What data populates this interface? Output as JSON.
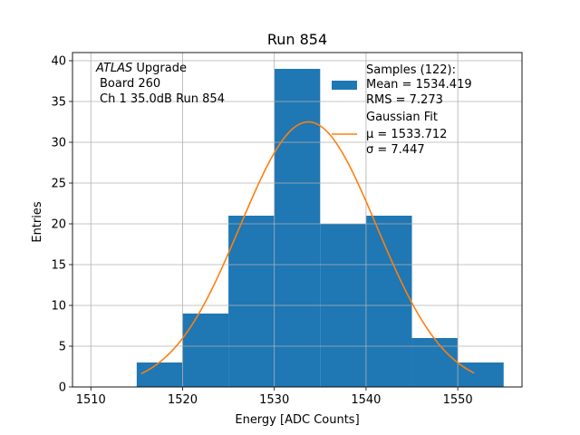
{
  "chart_data": {
    "type": "bar",
    "title": "Run 854",
    "xlabel": "Energy [ADC Counts]",
    "ylabel": "Entries",
    "xlim": [
      1508,
      1557
    ],
    "ylim": [
      0,
      41
    ],
    "grid": true,
    "xticks": [
      "1510",
      "1520",
      "1530",
      "1540",
      "1550"
    ],
    "yticks": [
      "0",
      "5",
      "10",
      "15",
      "20",
      "25",
      "30",
      "35",
      "40"
    ],
    "histogram": {
      "bin_edges": [
        1515,
        1520,
        1525,
        1530,
        1535,
        1540,
        1545,
        1550,
        1555
      ],
      "counts": [
        3,
        9,
        21,
        39,
        20,
        21,
        6,
        3
      ],
      "color": "#1f77b4"
    },
    "fit": {
      "type": "gaussian",
      "mu": 1533.712,
      "sigma": 7.447,
      "peak": 32.5,
      "x_range": [
        1515.5,
        1551.8
      ],
      "color": "#ff7f0e"
    },
    "annotation": {
      "line1_italic": "ATLAS",
      "line1_rest": " Upgrade",
      "line2": "Board 260",
      "line3": "Ch 1 35.0dB  Run 854"
    },
    "legend": {
      "placement": "top-right",
      "entries": [
        {
          "kind": "patch",
          "lines": [
            "Samples (122):",
            "Mean = 1534.419",
            "RMS = 7.273"
          ]
        },
        {
          "kind": "line",
          "lines": [
            "Gaussian Fit",
            "μ = 1533.712",
            "σ = 7.447"
          ]
        }
      ]
    }
  }
}
